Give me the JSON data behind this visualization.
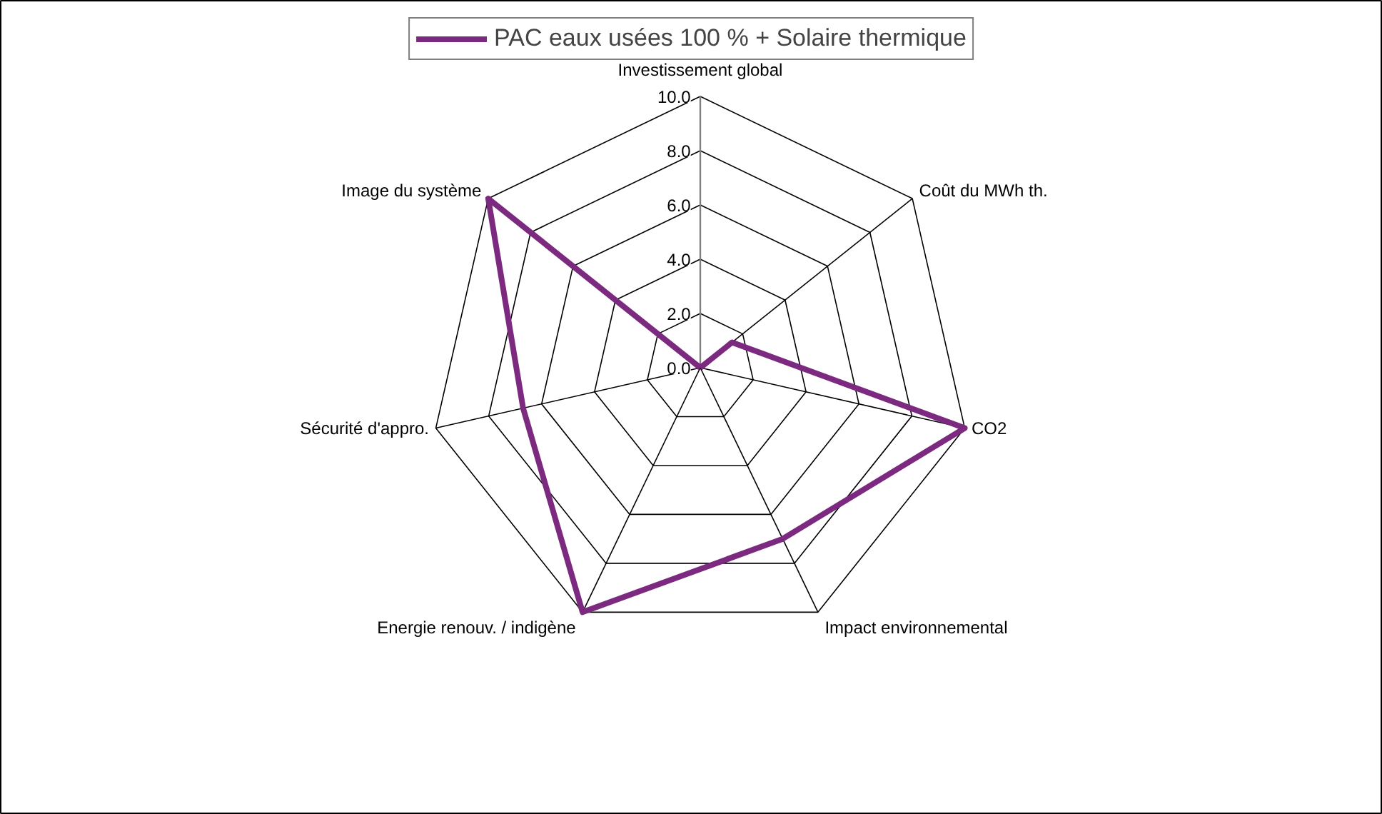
{
  "chart_data": {
    "type": "radar",
    "categories": [
      "Investissement global",
      "Coût du MWh th.",
      "CO2",
      "Impact environnemental",
      "Energie renouv. / indigène",
      "Sécurité d'appro.",
      "Image du système"
    ],
    "series": [
      {
        "name": "PAC eaux usées 100 % + Solaire thermique",
        "color": "#7b2a80",
        "values": [
          0,
          1.5,
          10,
          7,
          10,
          6.7,
          10
        ]
      }
    ],
    "ylim": [
      0,
      10
    ],
    "yticks": [
      {
        "value": 0,
        "label": "0.0"
      },
      {
        "value": 2,
        "label": "2.0"
      },
      {
        "value": 4,
        "label": "4.0"
      },
      {
        "value": 6,
        "label": "6.0"
      },
      {
        "value": 8,
        "label": "8.0"
      },
      {
        "value": 10,
        "label": "10.0"
      }
    ],
    "grid": true,
    "legend": "top",
    "marker": "none"
  }
}
